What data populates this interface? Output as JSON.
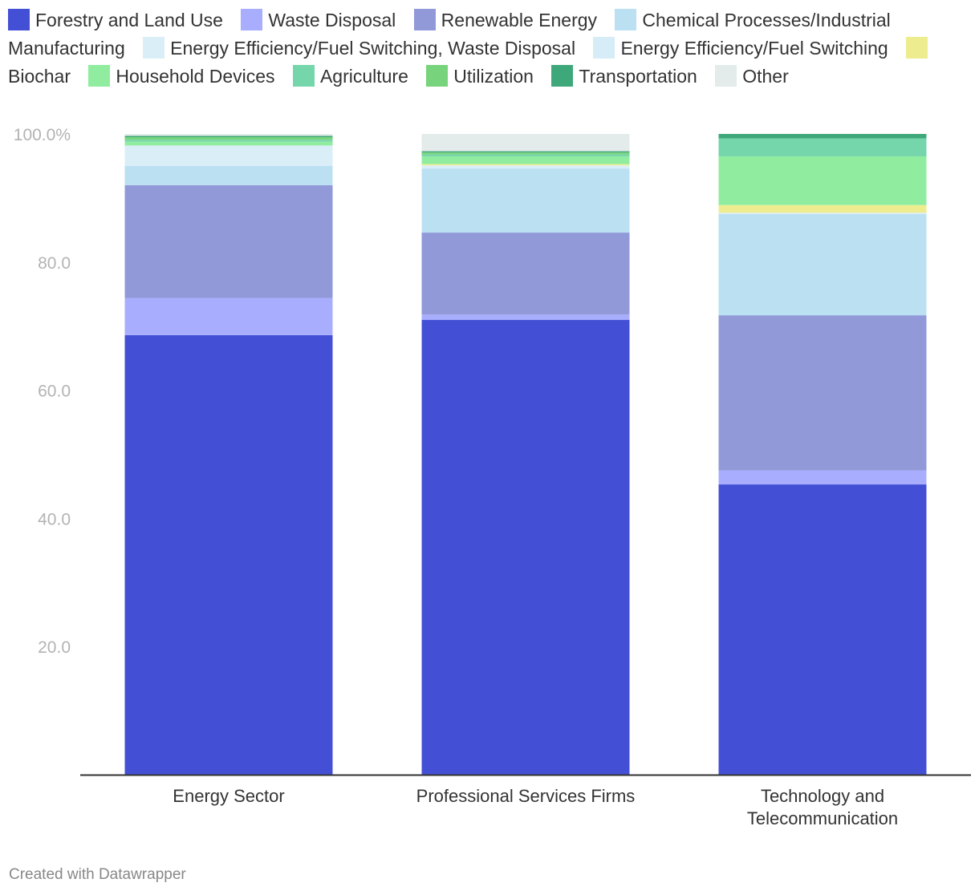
{
  "legend": [
    {
      "label": "Forestry and Land Use",
      "color": "#4350d6"
    },
    {
      "label": "Waste Disposal",
      "color": "#a8aefd"
    },
    {
      "label": "Renewable Energy",
      "color": "#9299d8"
    },
    {
      "label": "Chemical Processes/Industrial Manufacturing",
      "color": "#bbe0f1"
    },
    {
      "label": "Energy Efficiency/Fuel Switching, Waste Disposal",
      "color": "#d9eef7"
    },
    {
      "label": "Energy Efficiency/Fuel Switching",
      "color": "#d6ecf7"
    },
    {
      "label": "Biochar",
      "color": "#eded8f"
    },
    {
      "label": "Household Devices",
      "color": "#90eda0"
    },
    {
      "label": "Agriculture",
      "color": "#76d6ab"
    },
    {
      "label": "Utilization",
      "color": "#77d47c"
    },
    {
      "label": "Transportation",
      "color": "#3ea87a"
    },
    {
      "label": "Other",
      "color": "#e3ebeb"
    }
  ],
  "chart_data": {
    "type": "bar",
    "stacked": true,
    "categories": [
      "Energy Sector",
      "Professional Services Firms",
      "Technology and Telecommunication"
    ],
    "ylim": [
      0,
      100
    ],
    "yticks": [
      "20.0",
      "40.0",
      "60.0",
      "80.0",
      "100.0%"
    ],
    "grid": false,
    "legend_position": "top",
    "series": [
      {
        "name": "Forestry and Land Use",
        "values": [
          68.6,
          71.0,
          45.3
        ]
      },
      {
        "name": "Waste Disposal",
        "values": [
          5.8,
          0.8,
          2.2
        ]
      },
      {
        "name": "Renewable Energy",
        "values": [
          17.6,
          12.8,
          24.2
        ]
      },
      {
        "name": "Chemical Processes/Industrial Manufacturing",
        "values": [
          3.0,
          10.0,
          15.8
        ]
      },
      {
        "name": "Energy Efficiency/Fuel Switching, Waste Disposal",
        "values": [
          3.2,
          0.5,
          0.2
        ]
      },
      {
        "name": "Energy Efficiency/Fuel Switching",
        "values": [
          0.0,
          0.0,
          0.0
        ]
      },
      {
        "name": "Biochar",
        "values": [
          0.0,
          0.2,
          1.2
        ]
      },
      {
        "name": "Household Devices",
        "values": [
          0.6,
          1.2,
          7.6
        ]
      },
      {
        "name": "Agriculture",
        "values": [
          0.3,
          0.3,
          2.8
        ]
      },
      {
        "name": "Utilization",
        "values": [
          0.4,
          0.3,
          0.0
        ]
      },
      {
        "name": "Transportation",
        "values": [
          0.2,
          0.2,
          0.7
        ]
      },
      {
        "name": "Other",
        "values": [
          0.3,
          2.7,
          0.0
        ]
      }
    ]
  },
  "footer": "Created with Datawrapper"
}
